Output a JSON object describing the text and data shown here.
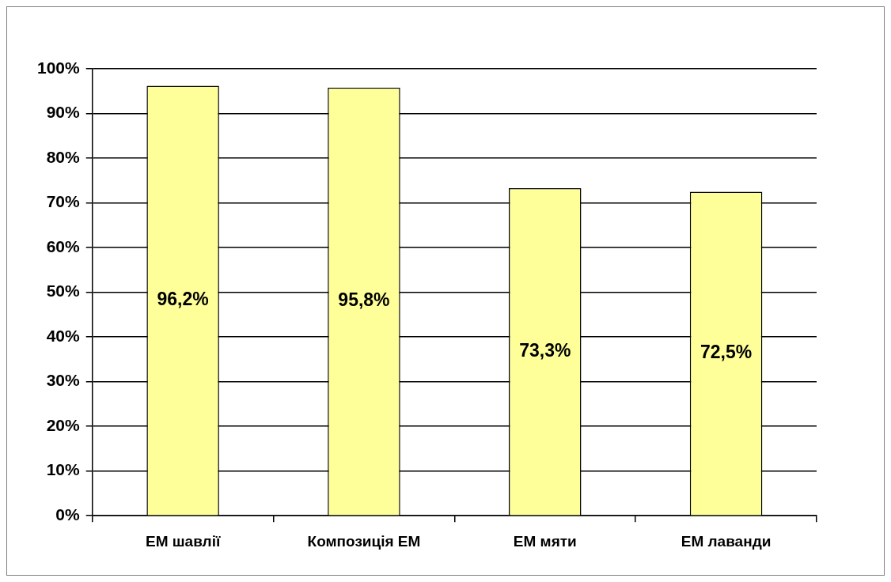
{
  "chart_data": {
    "type": "bar",
    "categories": [
      "ЕМ шавлії",
      "Композиція ЕМ",
      "ЕМ мяти",
      "ЕМ лаванди"
    ],
    "values": [
      96.2,
      95.8,
      73.3,
      72.5
    ],
    "value_labels": [
      "96,2%",
      "95,8%",
      "73,3%",
      "72,5%"
    ],
    "color": "#ffff99",
    "ylim": [
      0,
      100
    ],
    "yticks": [
      {
        "value": 0,
        "label": "0%"
      },
      {
        "value": 10,
        "label": "10%"
      },
      {
        "value": 20,
        "label": "20%"
      },
      {
        "value": 30,
        "label": "30%"
      },
      {
        "value": 40,
        "label": "40%"
      },
      {
        "value": 50,
        "label": "50%"
      },
      {
        "value": 60,
        "label": "60%"
      },
      {
        "value": 70,
        "label": "70%"
      },
      {
        "value": 80,
        "label": "80%"
      },
      {
        "value": 90,
        "label": "90%"
      },
      {
        "value": 100,
        "label": "100%"
      }
    ],
    "grid": "y",
    "legend": false
  }
}
